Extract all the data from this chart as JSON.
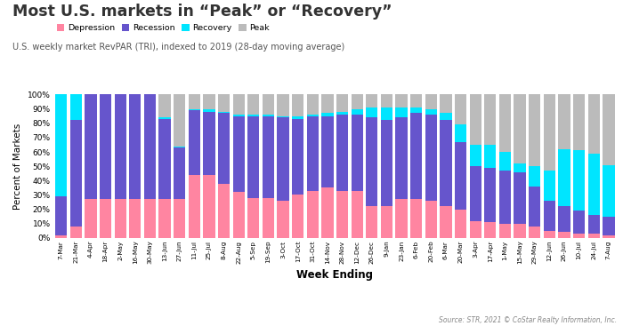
{
  "title": "Most U.S. markets in “Peak” or “Recovery”",
  "subtitle": "U.S. weekly market RevPAR (TRI), indexed to 2019 (28-day moving average)",
  "xlabel": "Week Ending",
  "ylabel": "Percent of Markets",
  "source": "Source: STR, 2021 © CoStar Realty Information, Inc.",
  "legend_labels": [
    "Depression",
    "Recession",
    "Recovery",
    "Peak"
  ],
  "colors": {
    "Depression": "#FF85A1",
    "Recession": "#6655CC",
    "Recovery": "#00E5FF",
    "Peak": "#BBBBBB"
  },
  "weeks": [
    "7-Mar",
    "21-Mar",
    "4-Apr",
    "18-Apr",
    "2-May",
    "16-May",
    "30-May",
    "13-Jun",
    "27-Jun",
    "11-Jul",
    "25-Jul",
    "8-Aug",
    "22-Aug",
    "5-Sep",
    "19-Sep",
    "3-Oct",
    "17-Oct",
    "31-Oct",
    "14-Nov",
    "28-Nov",
    "12-Dec",
    "26-Dec",
    "9-Jan",
    "23-Jan",
    "6-Feb",
    "20-Feb",
    "6-Mar",
    "20-Mar",
    "3-Apr",
    "17-Apr",
    "1-May",
    "15-May",
    "29-May",
    "12-Jun",
    "26-Jun",
    "10-Jul",
    "24-Jul",
    "7-Aug"
  ],
  "depression": [
    2,
    8,
    27,
    27,
    27,
    27,
    27,
    27,
    27,
    44,
    44,
    38,
    32,
    28,
    28,
    26,
    30,
    33,
    35,
    33,
    33,
    22,
    22,
    27,
    27,
    26,
    22,
    20,
    12,
    11,
    10,
    10,
    8,
    5,
    4,
    3,
    3,
    2
  ],
  "recession": [
    27,
    74,
    73,
    73,
    73,
    73,
    73,
    56,
    36,
    45,
    44,
    49,
    53,
    57,
    57,
    58,
    53,
    52,
    50,
    53,
    53,
    62,
    60,
    57,
    60,
    60,
    60,
    47,
    38,
    38,
    37,
    36,
    28,
    21,
    18,
    16,
    13,
    13
  ],
  "recovery": [
    71,
    18,
    0,
    0,
    0,
    0,
    0,
    1,
    1,
    1,
    2,
    1,
    1,
    1,
    1,
    1,
    2,
    1,
    2,
    2,
    4,
    7,
    9,
    7,
    4,
    4,
    5,
    12,
    15,
    16,
    13,
    6,
    14,
    21,
    40,
    42,
    43,
    36
  ],
  "peak": [
    0,
    0,
    0,
    0,
    0,
    0,
    0,
    16,
    36,
    10,
    10,
    12,
    14,
    14,
    14,
    15,
    15,
    14,
    13,
    12,
    10,
    9,
    9,
    9,
    9,
    10,
    13,
    21,
    35,
    35,
    40,
    48,
    50,
    53,
    38,
    39,
    41,
    49
  ]
}
